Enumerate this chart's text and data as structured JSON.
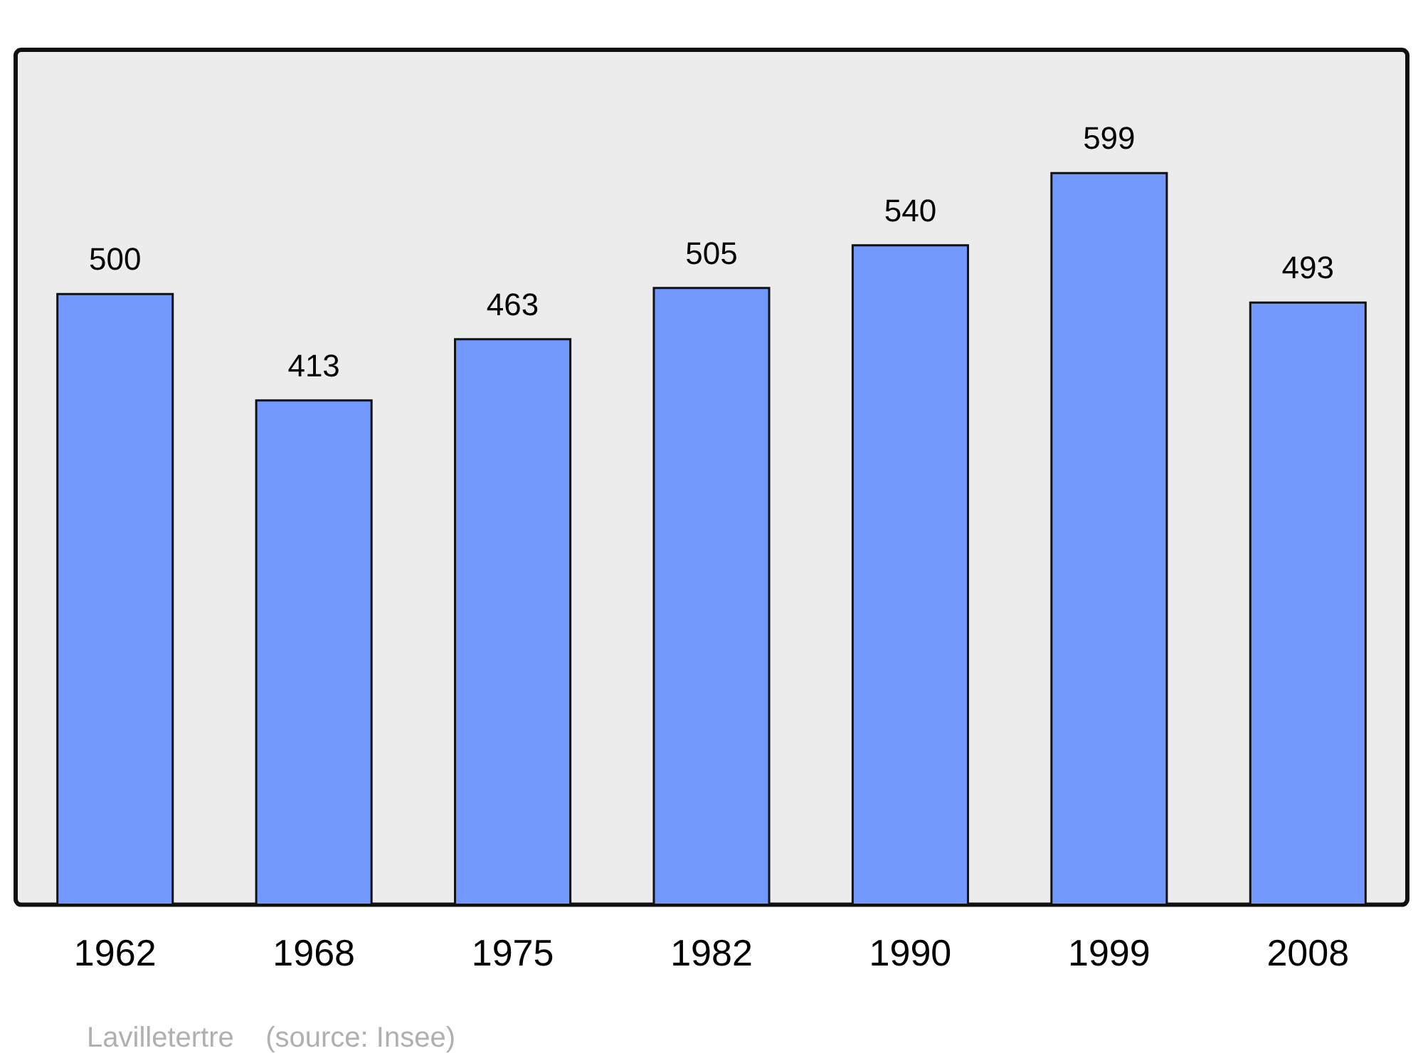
{
  "chart_data": {
    "type": "bar",
    "categories": [
      "1962",
      "1968",
      "1975",
      "1982",
      "1990",
      "1999",
      "2008"
    ],
    "values": [
      500,
      413,
      463,
      505,
      540,
      599,
      493
    ],
    "color": "#7399ff",
    "data_labels": true,
    "grid": false,
    "legend": false,
    "annotations": [
      "Lavilletertre    (source: Insee)"
    ]
  }
}
